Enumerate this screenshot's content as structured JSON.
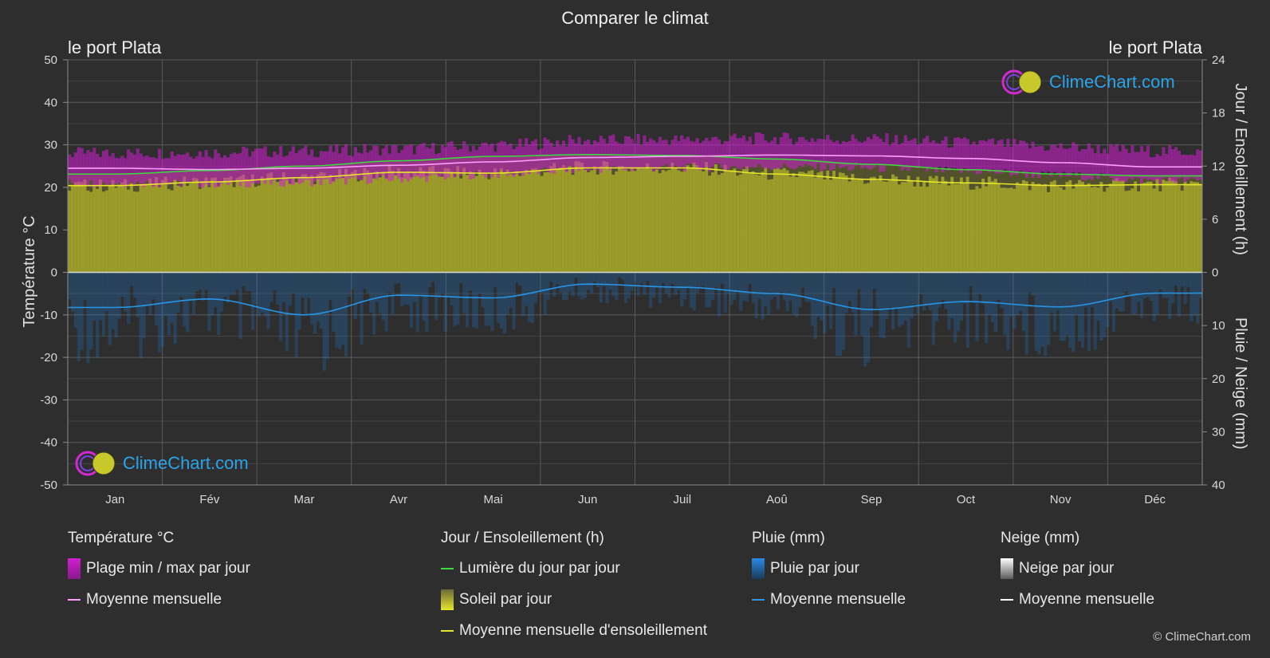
{
  "title": "Comparer le climat",
  "location_left": "le port Plata",
  "location_right": "le port Plata",
  "logo_text": "ClimeChart.com",
  "copyright": "© ClimeChart.com",
  "axes": {
    "left_label": "Température °C",
    "right_top_label": "Jour / Ensoleillement (h)",
    "right_bottom_label": "Pluie / Neige (mm)",
    "left_ticks": [
      "50",
      "40",
      "30",
      "20",
      "10",
      "0",
      "-10",
      "-20",
      "-30",
      "-40",
      "-50"
    ],
    "right_top_ticks": [
      "24",
      "18",
      "12",
      "6",
      "0"
    ],
    "right_bottom_ticks": [
      "10",
      "20",
      "30",
      "40"
    ]
  },
  "legend": {
    "temperature": {
      "header": "Température °C",
      "range": "Plage min / max par jour",
      "mean": "Moyenne mensuelle"
    },
    "sun": {
      "header": "Jour / Ensoleillement (h)",
      "daylight": "Lumière du jour par jour",
      "sunshine": "Soleil par jour",
      "sun_mean": "Moyenne mensuelle d'ensoleillement"
    },
    "rain": {
      "header": "Pluie (mm)",
      "daily": "Pluie par jour",
      "mean": "Moyenne mensuelle"
    },
    "snow": {
      "header": "Neige (mm)",
      "daily": "Neige par jour",
      "mean": "Moyenne mensuelle"
    }
  },
  "colors": {
    "temp_range": "#d21ed2",
    "temp_mean": "#ff9cff",
    "daylight": "#3cdc3c",
    "sunshine_fill": "#a8a82a",
    "sun_mean": "#e6e62a",
    "rain": "#1e78c8",
    "rain_mean": "#2896e6",
    "snow_mean": "#ffffff",
    "logo": "#2aa4ea"
  },
  "chart_data": {
    "type": "area",
    "categories": [
      "Jan",
      "Fév",
      "Mar",
      "Avr",
      "Mai",
      "Jun",
      "Juil",
      "Aoû",
      "Sep",
      "Oct",
      "Nov",
      "Déc"
    ],
    "temp_ylim": [
      -50,
      50
    ],
    "hours_ylim": [
      0,
      24
    ],
    "precip_ylim": [
      0,
      40
    ],
    "series": [
      {
        "name": "Moyenne mensuelle",
        "kind": "temp_mean",
        "axis": "temp",
        "values": [
          24.5,
          24.2,
          24.5,
          25.2,
          26.0,
          27.0,
          27.3,
          27.6,
          27.4,
          26.8,
          25.8,
          24.8
        ]
      },
      {
        "name": "Plage min / max par jour",
        "kind": "temp_max",
        "axis": "temp",
        "values": [
          28.0,
          28.2,
          28.5,
          29.0,
          29.8,
          31.0,
          31.2,
          31.5,
          31.3,
          30.5,
          29.5,
          28.5
        ]
      },
      {
        "name": "Plage min / max par jour",
        "kind": "temp_min",
        "axis": "temp",
        "values": [
          21.0,
          20.8,
          21.2,
          22.0,
          23.0,
          24.2,
          24.6,
          24.8,
          24.5,
          23.8,
          22.8,
          21.6
        ]
      },
      {
        "name": "Lumière du jour par jour",
        "kind": "daylight",
        "axis": "hours",
        "values": [
          11.1,
          11.5,
          12.0,
          12.6,
          13.1,
          13.3,
          13.2,
          12.8,
          12.2,
          11.6,
          11.1,
          10.9
        ]
      },
      {
        "name": "Moyenne mensuelle d'ensoleillement",
        "kind": "sun_mean",
        "axis": "hours",
        "values": [
          9.8,
          10.2,
          10.7,
          11.3,
          11.2,
          11.8,
          11.8,
          11.1,
          10.5,
          10.1,
          9.8,
          9.9
        ]
      },
      {
        "name": "Moyenne mensuelle",
        "kind": "rain_mean",
        "axis": "precip",
        "values": [
          6.6,
          5.0,
          8.0,
          4.3,
          4.8,
          2.2,
          2.8,
          4.0,
          7.0,
          5.5,
          6.5,
          3.9
        ]
      }
    ]
  }
}
